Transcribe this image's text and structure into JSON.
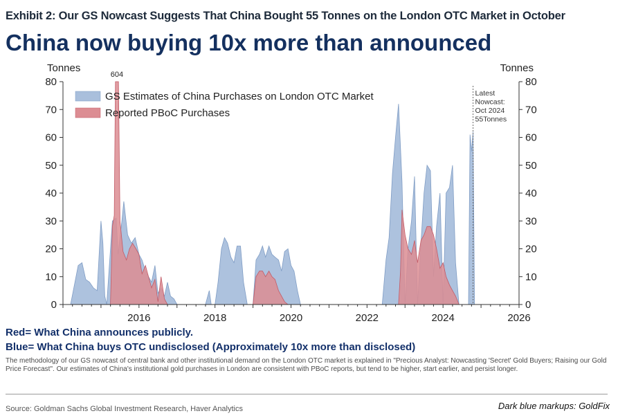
{
  "exhibit_title": "Exhibit 2: Our GS Nowcast Suggests That China Bought 55 Tonnes on the London OTC Market in October",
  "headline": "China now buying 10x more than announced",
  "notes": {
    "red": "Red= What China announces publicly.",
    "blue": "Blue= What China buys OTC undisclosed (Approximately 10x more than disclosed)"
  },
  "methodology": "The methodology of our GS nowcast of central bank and other institutional demand on the London OTC market is explained in \"Precious Analyst: Nowcasting 'Secret' Gold Buyers; Raising our Gold Price Forecast\". Our estimates of China's institutional gold purchases in London are consistent with PBoC reports, but tend to be higher, start earlier, and persist longer.",
  "source": "Source: Goldman Sachs Global Investment Research, Haver Analytics",
  "markup_credit": "Dark blue markups: GoldFix",
  "colors": {
    "blue": "#a9bfdc",
    "blue_edge": "#7f9cc4",
    "red": "#dc8d93",
    "red_edge": "#c25a66",
    "headline": "#14305f"
  },
  "chart_data": {
    "type": "area",
    "y_left_label": "Tonnes",
    "y_right_label": "Tonnes",
    "xlim": [
      2014.0,
      2026.0
    ],
    "ylim": [
      0,
      80
    ],
    "x_ticks": [
      2016,
      2018,
      2020,
      2022,
      2024,
      2026
    ],
    "y_ticks": [
      0,
      10,
      20,
      30,
      40,
      50,
      60,
      70,
      80
    ],
    "grid": false,
    "legend_position": "top-left",
    "legend": [
      "GS Estimates of China Purchases on London OTC Market",
      "Reported PBoC Purchases"
    ],
    "annotations": {
      "clipped_peak": {
        "label": "604",
        "x": 2015.42
      },
      "nowcast": {
        "lines": [
          "Latest",
          "Nowcast:",
          "Oct 2024",
          "55Tonnes"
        ],
        "x": 2024.79
      }
    },
    "series": [
      {
        "name": "GS Estimates of China Purchases on London OTC Market",
        "x": [
          2014.2,
          2014.4,
          2014.5,
          2014.6,
          2014.7,
          2014.8,
          2014.9,
          2015.0,
          2015.05,
          2015.1,
          2015.15,
          2015.3,
          2015.4,
          2015.45,
          2015.55,
          2015.6,
          2015.7,
          2015.8,
          2015.9,
          2016.0,
          2016.08,
          2016.17,
          2016.25,
          2016.33,
          2016.42,
          2016.5,
          2016.58,
          2016.67,
          2016.75,
          2016.83,
          2016.92,
          2017.0,
          2017.1,
          2017.75,
          2017.85,
          2017.9,
          2018.0,
          2018.08,
          2018.17,
          2018.25,
          2018.33,
          2018.42,
          2018.5,
          2018.58,
          2018.67,
          2018.75,
          2018.85,
          2019.0,
          2019.08,
          2019.17,
          2019.25,
          2019.33,
          2019.42,
          2019.5,
          2019.58,
          2019.67,
          2019.75,
          2019.83,
          2019.92,
          2020.0,
          2020.08,
          2020.17,
          2020.25,
          2022.4,
          2022.5,
          2022.58,
          2022.67,
          2022.75,
          2022.83,
          2022.92,
          2023.0,
          2023.08,
          2023.17,
          2023.25,
          2023.33,
          2023.42,
          2023.5,
          2023.58,
          2023.67,
          2023.75,
          2023.83,
          2023.92,
          2024.0,
          2024.08,
          2024.17,
          2024.25,
          2024.33,
          2024.42,
          2024.5,
          2024.58,
          2024.67,
          2024.71,
          2024.75,
          2024.79,
          2024.83,
          2024.88
        ],
        "values": [
          0,
          14,
          15,
          9,
          8,
          6,
          5,
          30,
          22,
          3,
          0,
          30,
          31,
          18,
          30,
          37,
          25,
          22,
          24,
          18,
          16,
          12,
          10,
          8,
          14,
          4,
          6,
          3,
          8,
          3,
          2,
          0,
          0,
          0,
          5,
          0,
          0,
          8,
          20,
          24,
          22,
          17,
          15,
          21,
          21,
          8,
          0,
          0,
          16,
          18,
          21,
          17,
          21,
          18,
          17,
          16,
          12,
          19,
          20,
          14,
          12,
          5,
          0,
          0,
          16,
          24,
          47,
          60,
          72,
          44,
          0,
          20,
          30,
          46,
          0,
          22,
          40,
          50,
          48,
          10,
          28,
          40,
          0,
          40,
          42,
          50,
          15,
          0,
          0,
          0,
          0,
          61,
          55,
          62,
          0,
          0
        ]
      },
      {
        "name": "Reported PBoC Purchases",
        "x": [
          2015.25,
          2015.3,
          2015.35,
          2015.38,
          2015.42,
          2015.46,
          2015.5,
          2015.58,
          2015.67,
          2015.75,
          2015.83,
          2015.92,
          2016.0,
          2016.08,
          2016.17,
          2016.25,
          2016.33,
          2016.42,
          2016.5,
          2016.58,
          2016.67,
          2016.75,
          2016.83,
          2016.92,
          2017.0,
          2019.0,
          2019.08,
          2019.17,
          2019.25,
          2019.33,
          2019.42,
          2019.5,
          2019.58,
          2019.67,
          2019.75,
          2019.83,
          2019.92,
          2022.83,
          2022.88,
          2022.92,
          2023.0,
          2023.08,
          2023.17,
          2023.25,
          2023.33,
          2023.42,
          2023.5,
          2023.58,
          2023.67,
          2023.75,
          2023.83,
          2023.92,
          2024.0,
          2024.08,
          2024.17,
          2024.25,
          2024.33,
          2024.42
        ],
        "values": [
          0,
          28,
          32,
          80,
          80,
          80,
          30,
          19,
          16,
          20,
          22,
          20,
          18,
          11,
          14,
          10,
          6,
          9,
          1,
          10,
          2,
          0,
          0,
          0,
          0,
          0,
          10,
          12,
          12,
          10,
          12,
          10,
          9,
          5,
          3,
          1,
          0,
          0,
          12,
          34,
          25,
          20,
          18,
          23,
          15,
          23,
          25,
          28,
          28,
          25,
          20,
          13,
          15,
          10,
          7,
          5,
          3,
          0
        ]
      }
    ]
  }
}
